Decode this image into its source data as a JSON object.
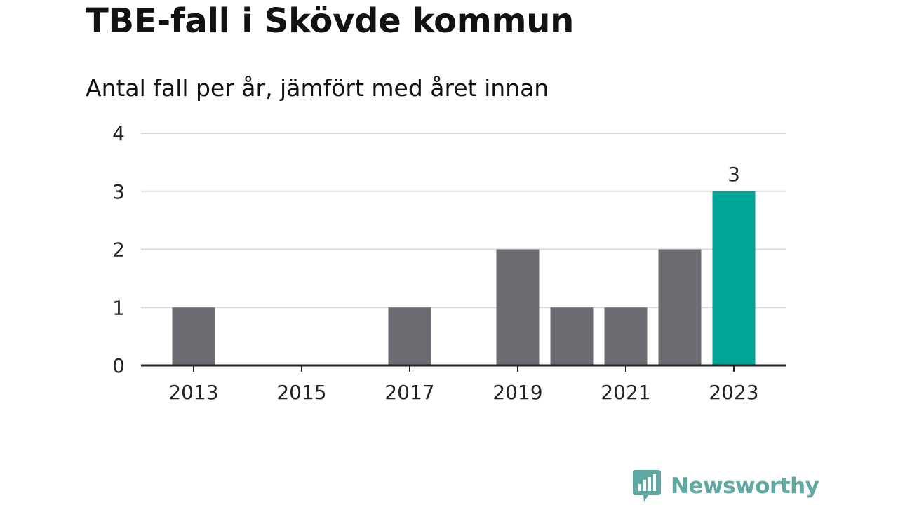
{
  "header": {
    "title": "TBE-fall i Skövde kommun",
    "subtitle": "Antal fall per år, jämfört med året innan"
  },
  "brand": {
    "name": "Newsworthy",
    "icon": "newsworthy-logo-icon",
    "color": "#5fa9a2"
  },
  "colors": {
    "bar_default": "#6d6c72",
    "bar_highlight": "#00a597",
    "grid": "#dadada",
    "axis": "#222222"
  },
  "chart_data": {
    "type": "bar",
    "title": "TBE-fall i Skövde kommun",
    "subtitle": "Antal fall per år, jämfört med året innan",
    "xlabel": "",
    "ylabel": "",
    "categories": [
      "2013",
      "2014",
      "2015",
      "2016",
      "2017",
      "2018",
      "2019",
      "2020",
      "2021",
      "2022",
      "2023"
    ],
    "values": [
      1,
      0,
      0,
      0,
      1,
      0,
      2,
      1,
      1,
      2,
      3
    ],
    "x_tick_labels": [
      "2013",
      "2015",
      "2017",
      "2019",
      "2021",
      "2023"
    ],
    "y_ticks": [
      0,
      1,
      2,
      3,
      4
    ],
    "ylim": [
      0,
      4
    ],
    "grid": true,
    "highlight_index": 10,
    "data_labels": [
      {
        "index": 10,
        "text": "3"
      }
    ]
  }
}
